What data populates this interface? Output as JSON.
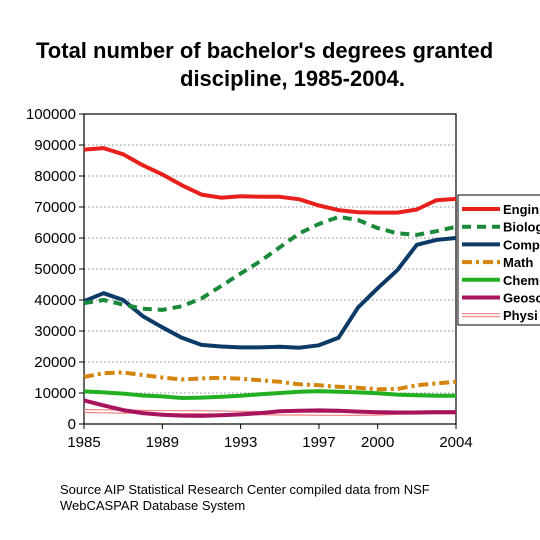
{
  "chart_data": {
    "type": "line",
    "title_lines": [
      "Total number of bachelor's degrees granted",
      "discipline, 1985-2004."
    ],
    "source_lines": [
      "Source AIP Statistical Research Center compiled data from NSF",
      "WebCASPAR Database System"
    ],
    "xlim": [
      1985,
      2004
    ],
    "ylim": [
      0,
      100000
    ],
    "y_ticks": [
      0,
      10000,
      20000,
      30000,
      40000,
      50000,
      60000,
      70000,
      80000,
      90000,
      100000
    ],
    "y_tick_labels": [
      "0",
      "10000",
      "20000",
      "30000",
      "40000",
      "50000",
      "60000",
      "70000",
      "80000",
      "90000",
      "100000"
    ],
    "x_ticks": [
      1985,
      1989,
      1993,
      1997,
      2000,
      2004
    ],
    "x_tick_labels": [
      "1985",
      "1989",
      "1993",
      "1997",
      "2000",
      "2004"
    ],
    "grid": "horizontal-dotted",
    "legend_position": "right",
    "series": [
      {
        "name": "Engin",
        "color": "#e8201c",
        "dash": "solid",
        "x": [
          1985,
          1986,
          1987,
          1988,
          1989,
          1990,
          1991,
          1992,
          1993,
          1994,
          1995,
          1996,
          1997,
          1998,
          1999,
          2000,
          2001,
          2002,
          2003,
          2004
        ],
        "values": [
          88500,
          89000,
          87000,
          83500,
          80500,
          77000,
          74000,
          73000,
          73500,
          73300,
          73300,
          72500,
          70500,
          69000,
          68300,
          68200,
          68200,
          69200,
          72200,
          72600
        ]
      },
      {
        "name": "Biolog",
        "color": "#1a8a3a",
        "dash": "dashed",
        "x": [
          1985,
          1986,
          1987,
          1988,
          1989,
          1990,
          1991,
          1992,
          1993,
          1994,
          1995,
          1996,
          1997,
          1998,
          1999,
          2000,
          2001,
          2002,
          2003,
          2004
        ],
        "values": [
          39000,
          40000,
          38500,
          37200,
          36800,
          38000,
          40500,
          44500,
          48500,
          52500,
          57000,
          61500,
          64500,
          66800,
          65800,
          63200,
          61500,
          61000,
          62200,
          63600
        ]
      },
      {
        "name": "Comp",
        "color": "#0c3a66",
        "dash": "solid",
        "x": [
          1985,
          1986,
          1987,
          1988,
          1989,
          1990,
          1991,
          1992,
          1993,
          1994,
          1995,
          1996,
          1997,
          1998,
          1999,
          2000,
          2001,
          2002,
          2003,
          2004
        ],
        "values": [
          39600,
          42200,
          40000,
          34800,
          31200,
          27800,
          25500,
          25000,
          24700,
          24700,
          24900,
          24600,
          25400,
          27800,
          37600,
          43800,
          49600,
          57800,
          59400,
          60000
        ]
      },
      {
        "name": "Math",
        "color": "#d4850f",
        "dash": "dashdot",
        "x": [
          1985,
          1986,
          1987,
          1988,
          1989,
          1990,
          1991,
          1992,
          1993,
          1994,
          1995,
          1996,
          1997,
          1998,
          1999,
          2000,
          2001,
          2002,
          2003,
          2004
        ],
        "values": [
          15200,
          16400,
          16600,
          15800,
          15000,
          14400,
          14700,
          14900,
          14600,
          14100,
          13600,
          12800,
          12500,
          12000,
          11700,
          11200,
          11300,
          12500,
          13100,
          13600
        ]
      },
      {
        "name": "Chem",
        "color": "#22b022",
        "dash": "solid",
        "x": [
          1985,
          1986,
          1987,
          1988,
          1989,
          1990,
          1991,
          1992,
          1993,
          1994,
          1995,
          1996,
          1997,
          1998,
          1999,
          2000,
          2001,
          2002,
          2003,
          2004
        ],
        "values": [
          10500,
          10200,
          9800,
          9200,
          8900,
          8400,
          8500,
          8800,
          9100,
          9600,
          10000,
          10400,
          10600,
          10400,
          10200,
          9900,
          9500,
          9300,
          9100,
          9100
        ]
      },
      {
        "name": "Geosc",
        "color": "#a8135e",
        "dash": "solid",
        "x": [
          1985,
          1986,
          1987,
          1988,
          1989,
          1990,
          1991,
          1992,
          1993,
          1994,
          1995,
          1996,
          1997,
          1998,
          1999,
          2000,
          2001,
          2002,
          2003,
          2004
        ],
        "values": [
          7600,
          6000,
          4500,
          3500,
          3000,
          2700,
          2600,
          2800,
          3100,
          3500,
          4100,
          4300,
          4400,
          4300,
          4000,
          3800,
          3700,
          3700,
          3800,
          3800
        ]
      },
      {
        "name": "Physi",
        "color": "#f08080",
        "dash": "double",
        "x": [
          1985,
          1986,
          1987,
          1988,
          1989,
          1990,
          1991,
          1992,
          1993,
          1994,
          1995,
          1996,
          1997,
          1998,
          1999,
          2000,
          2001,
          2002,
          2003,
          2004
        ],
        "values": [
          4200,
          4100,
          4000,
          3900,
          3800,
          3800,
          3800,
          3700,
          3600,
          3500,
          3400,
          3400,
          3300,
          3300,
          3300,
          3400,
          3600,
          3700,
          3800,
          3800
        ]
      }
    ]
  }
}
